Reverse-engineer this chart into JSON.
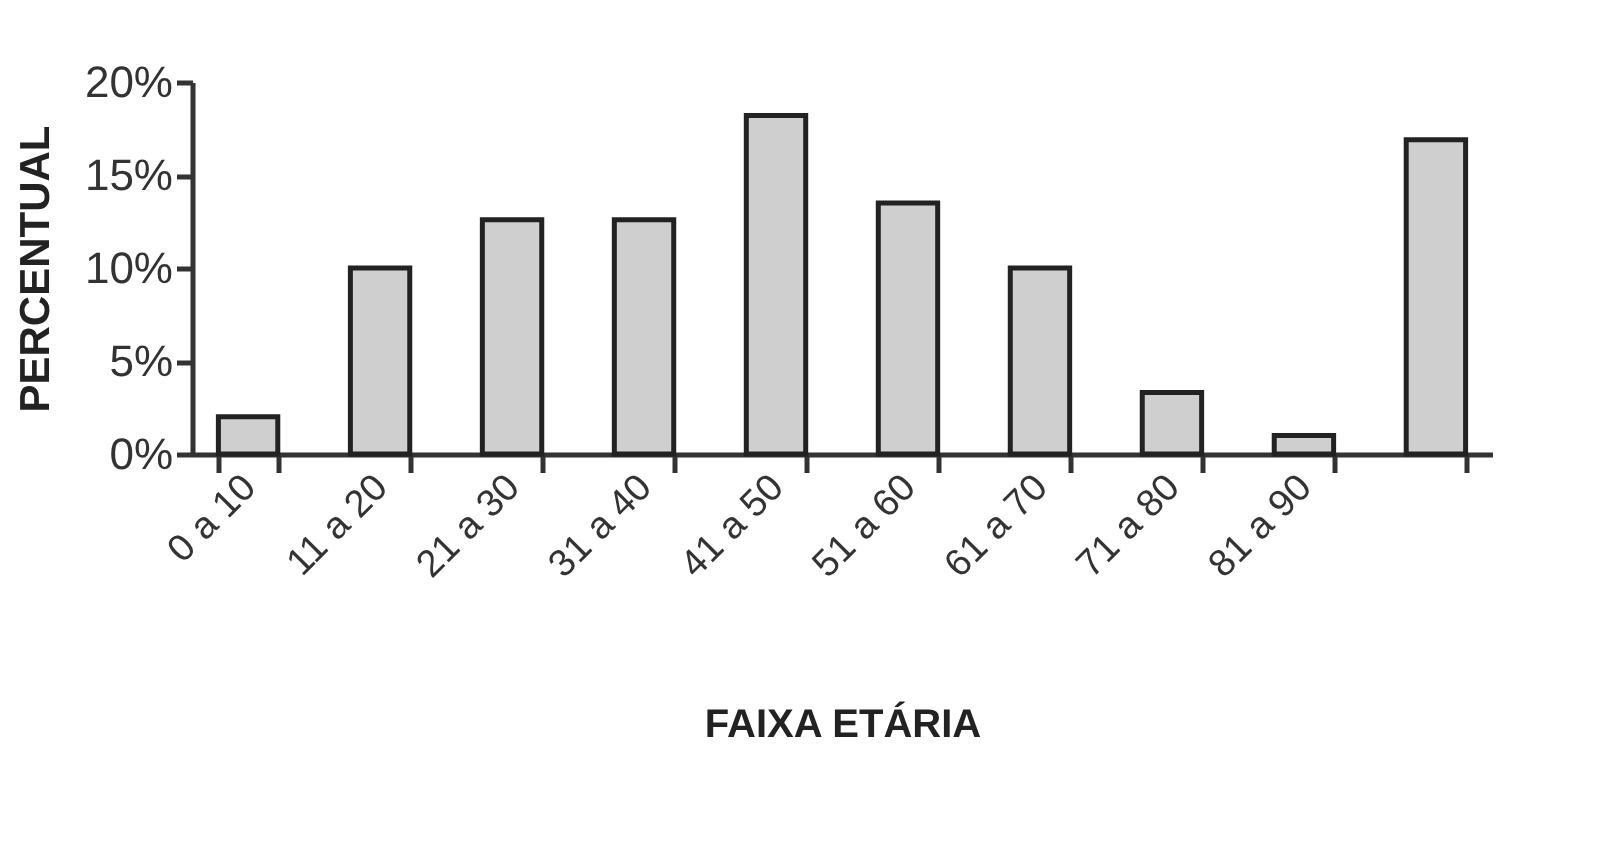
{
  "chart_data": {
    "type": "bar",
    "xlabel": "FAIXA ETÁRIA",
    "ylabel": "PERCENTUAL",
    "categories": [
      "0 a 10",
      "11 a 20",
      "21 a 30",
      "31 a 40",
      "41 a 50",
      "51 a 60",
      "61 a 70",
      "71 a 80",
      "81 a 90",
      null
    ],
    "values": [
      2,
      10,
      12.6,
      12.6,
      18.2,
      13.5,
      10,
      3.3,
      1,
      16.9
    ],
    "color": "#cfcfcf",
    "ylim": [
      0,
      20
    ],
    "yticks": [
      {
        "value": 0,
        "label": "0%"
      },
      {
        "value": 5,
        "label": "5%"
      },
      {
        "value": 10,
        "label": "10%"
      },
      {
        "value": 15,
        "label": "15%"
      },
      {
        "value": 20,
        "label": "20%"
      }
    ],
    "grid": false
  }
}
